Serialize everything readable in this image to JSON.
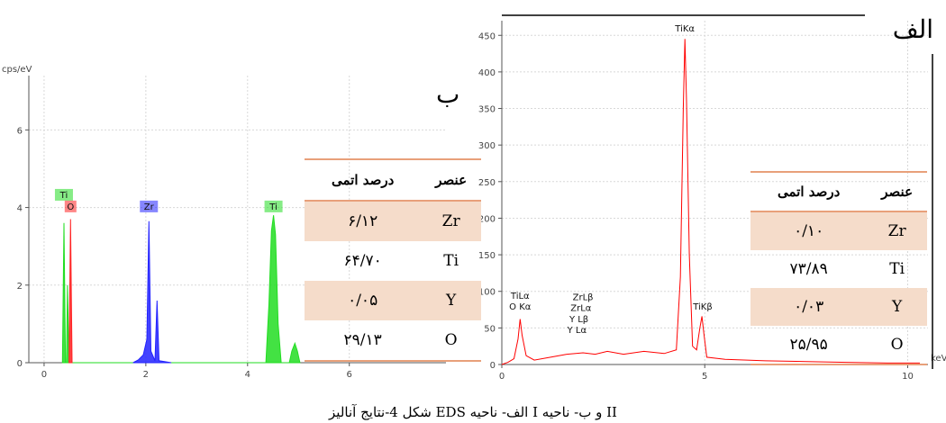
{
  "caption": "شکل 4-نتایج آنالیز EDS  الف- ناحیه I و ب- ناحیه II",
  "colors": {
    "green": "#22dd22",
    "red": "#ff2222",
    "blue": "#2222ff",
    "accent": "#e8a07a",
    "shade": "#f5dcca"
  },
  "panel_a": {
    "letter": "الف",
    "table": {
      "headers": {
        "element": "عنصر",
        "atomic_percent": "درصد اتمی"
      },
      "rows": [
        {
          "element": "Zr",
          "value": "۰/۱۰",
          "shaded": true
        },
        {
          "element": "Ti",
          "value": "۷۳/۸۹",
          "shaded": false
        },
        {
          "element": "Y",
          "value": "۰/۰۳",
          "shaded": true
        },
        {
          "element": "O",
          "value": "۲۵/۹۵",
          "shaded": false
        }
      ]
    }
  },
  "panel_b": {
    "letter": "ب",
    "table": {
      "headers": {
        "element": "عنصر",
        "atomic_percent": "درصد اتمی"
      },
      "rows": [
        {
          "element": "Zr",
          "value": "۶/۱۲",
          "shaded": true
        },
        {
          "element": "Ti",
          "value": "۶۴/۷۰",
          "shaded": false
        },
        {
          "element": "Y",
          "value": "۰/۰۵",
          "shaded": true
        },
        {
          "element": "O",
          "value": "۲۹/۱۳",
          "shaded": false
        }
      ]
    }
  },
  "chart_data": [
    {
      "type": "line",
      "panel": "ب",
      "ylabel": "cps/eV",
      "xlabel": "",
      "xlim": [
        -0.3,
        7.9
      ],
      "ylim": [
        0,
        7.4
      ],
      "x_ticks": [
        0,
        2,
        4,
        6
      ],
      "y_ticks": [
        0,
        2,
        4,
        6
      ],
      "grid": true,
      "series": [
        {
          "color": "#22dd22",
          "points": [
            [
              0.36,
              0
            ],
            [
              0.39,
              3.6
            ],
            [
              0.42,
              0
            ],
            [
              0.44,
              0
            ],
            [
              0.46,
              2.0
            ],
            [
              0.49,
              0
            ],
            [
              4.36,
              0
            ],
            [
              4.42,
              1.5
            ],
            [
              4.47,
              3.4
            ],
            [
              4.51,
              3.8
            ],
            [
              4.55,
              3.3
            ],
            [
              4.6,
              1.0
            ],
            [
              4.66,
              0
            ],
            [
              4.82,
              0
            ],
            [
              4.87,
              0.3
            ],
            [
              4.93,
              0.5
            ],
            [
              4.98,
              0.3
            ],
            [
              5.03,
              0
            ]
          ]
        },
        {
          "color": "#ff2222",
          "points": [
            [
              0.49,
              0
            ],
            [
              0.52,
              3.7
            ],
            [
              0.55,
              0
            ]
          ]
        },
        {
          "color": "#2222ff",
          "points": [
            [
              1.75,
              0
            ],
            [
              1.85,
              0.07
            ],
            [
              1.95,
              0.2
            ],
            [
              2.02,
              0.6
            ],
            [
              2.06,
              3.65
            ],
            [
              2.1,
              0.3
            ],
            [
              2.18,
              0.05
            ],
            [
              2.22,
              1.6
            ],
            [
              2.26,
              0.05
            ],
            [
              2.5,
              0
            ]
          ]
        }
      ],
      "peak_labels": [
        {
          "text": "Ti",
          "x": 0.39,
          "y": 4.2,
          "color": "#22dd22"
        },
        {
          "text": "O",
          "x": 0.52,
          "y": 3.9,
          "color": "#ff2222"
        },
        {
          "text": "Zr",
          "x": 2.06,
          "y": 3.9,
          "color": "#2222ff"
        },
        {
          "text": "Ti",
          "x": 4.51,
          "y": 3.9,
          "color": "#22dd22"
        }
      ]
    },
    {
      "type": "line",
      "panel": "الف",
      "xlabel": "keV",
      "xlim": [
        0,
        10.5
      ],
      "ylim": [
        0,
        470
      ],
      "x_ticks": [
        0,
        5,
        10
      ],
      "y_ticks": [
        0,
        50,
        100,
        150,
        200,
        250,
        300,
        350,
        400,
        450
      ],
      "grid": true,
      "series": [
        {
          "color": "#ff0000",
          "points": [
            [
              0,
              0
            ],
            [
              0.15,
              3
            ],
            [
              0.3,
              8
            ],
            [
              0.4,
              35
            ],
            [
              0.45,
              62
            ],
            [
              0.5,
              40
            ],
            [
              0.6,
              12
            ],
            [
              0.8,
              6
            ],
            [
              1.2,
              10
            ],
            [
              1.6,
              14
            ],
            [
              2.0,
              16
            ],
            [
              2.3,
              14
            ],
            [
              2.6,
              18
            ],
            [
              3.0,
              14
            ],
            [
              3.5,
              18
            ],
            [
              4.0,
              15
            ],
            [
              4.3,
              20
            ],
            [
              4.4,
              120
            ],
            [
              4.47,
              350
            ],
            [
              4.51,
              445
            ],
            [
              4.55,
              360
            ],
            [
              4.62,
              150
            ],
            [
              4.7,
              25
            ],
            [
              4.8,
              20
            ],
            [
              4.88,
              50
            ],
            [
              4.93,
              66
            ],
            [
              4.98,
              42
            ],
            [
              5.05,
              10
            ],
            [
              5.5,
              7
            ],
            [
              6.5,
              5
            ],
            [
              7.5,
              4
            ],
            [
              8.5,
              3
            ],
            [
              9.5,
              2
            ],
            [
              10.3,
              2
            ]
          ]
        }
      ],
      "peak_labels": [
        {
          "text": "TiKα",
          "x": 4.51,
          "y": 455
        },
        {
          "text": "TiLα",
          "x": 0.45,
          "y": 90
        },
        {
          "text": "O Kα",
          "x": 0.45,
          "y": 75
        },
        {
          "text": "ZrLβ",
          "x": 2.0,
          "y": 88
        },
        {
          "text": "ZrLα",
          "x": 1.95,
          "y": 73
        },
        {
          "text": "Y Lβ",
          "x": 1.9,
          "y": 58
        },
        {
          "text": "Y Lα",
          "x": 1.85,
          "y": 43
        },
        {
          "text": "TiKβ",
          "x": 4.95,
          "y": 75
        }
      ]
    }
  ]
}
